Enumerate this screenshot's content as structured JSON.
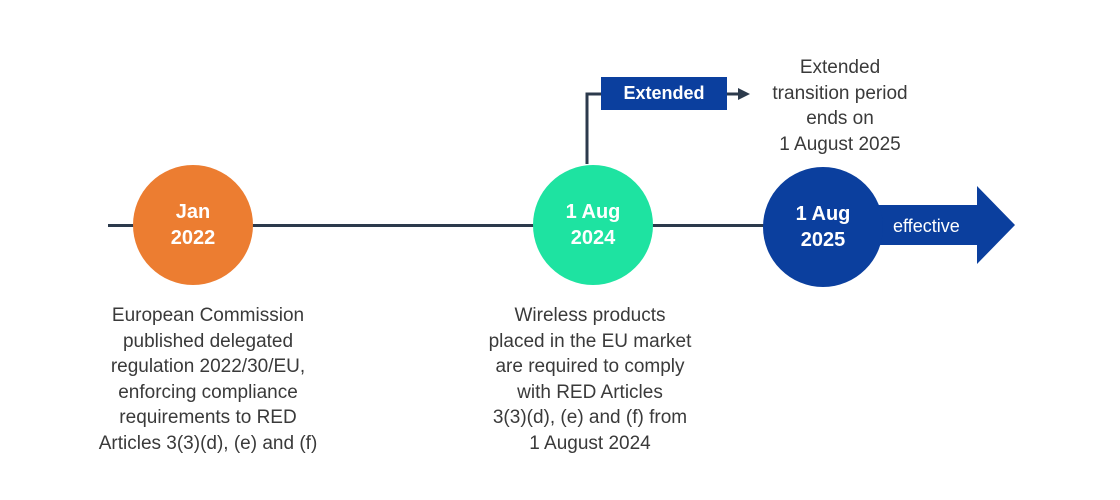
{
  "milestones": {
    "jan_2022": {
      "line1": "Jan",
      "line2": "2022",
      "color": "#ec7d31"
    },
    "aug_2024": {
      "line1": "1 Aug",
      "line2": "2024",
      "color": "#1ee3a1"
    },
    "aug_2025": {
      "line1": "1 Aug",
      "line2": "2025",
      "color": "#0b3f9e"
    }
  },
  "effective_label": "effective",
  "extended_label": "Extended",
  "extended_note": [
    "Extended",
    "transition period",
    "ends on",
    "1 August 2025"
  ],
  "descriptions": {
    "jan_2022": [
      "European Commission",
      "published delegated",
      "regulation 2022/30/EU,",
      "enforcing compliance",
      "requirements to RED",
      "Articles 3(3)(d), (e) and (f)"
    ],
    "aug_2024": [
      "Wireless products",
      "placed in the EU market",
      "are required to comply",
      "with RED Articles",
      "3(3)(d), (e) and (f) from",
      "1 August 2024"
    ]
  },
  "colors": {
    "line": "#2c3a4c",
    "accent_blue": "#0b3f9e",
    "text": "#3a3a3a"
  }
}
